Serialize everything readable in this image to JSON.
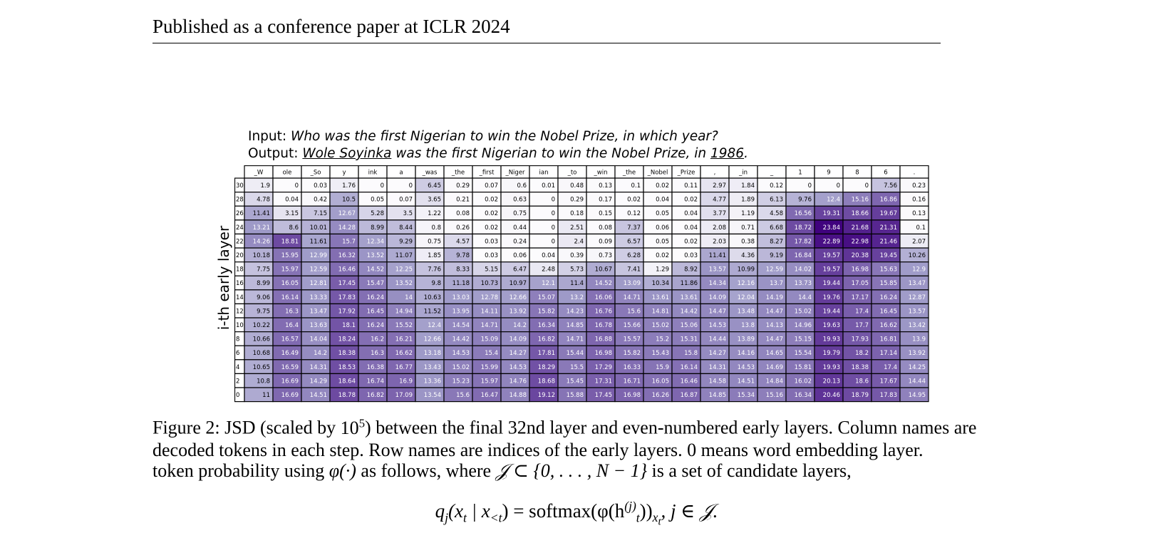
{
  "header": {
    "text": "Published as a conference paper at ICLR 2024"
  },
  "input_line": {
    "label": "Input:",
    "text": "Who was the first Nigerian to win the Nobel Prize, in which year?"
  },
  "output_line": {
    "label": "Output:",
    "ans1": "Wole Soyinka",
    "mid": "was the first Nigerian to win the Nobel Prize, in",
    "ans2": "1986",
    "end": "."
  },
  "chart_data": {
    "type": "heatmap",
    "ylabel": "i-th early layer",
    "columns": [
      "_W",
      "ole",
      "_So",
      "y",
      "ink",
      "a",
      "_was",
      "_the",
      "_first",
      "_Niger",
      "ian",
      "_to",
      "_win",
      "_the",
      "_Nobel",
      "_Prize",
      ",",
      "_in",
      "_",
      "1",
      "9",
      "8",
      "6",
      "."
    ],
    "rows": [
      "30",
      "28",
      "26",
      "24",
      "22",
      "20",
      "18",
      "16",
      "14",
      "12",
      "10",
      "8",
      "6",
      "4",
      "2",
      "0"
    ],
    "values": [
      [
        1.9,
        0.0,
        0.03,
        1.76,
        0.0,
        0.0,
        6.45,
        0.29,
        0.07,
        0.6,
        0.01,
        0.48,
        0.13,
        0.1,
        0.02,
        0.11,
        2.97,
        1.84,
        0.12,
        0.0,
        0.0,
        0.0,
        7.56,
        0.23
      ],
      [
        4.78,
        0.04,
        0.42,
        10.5,
        0.05,
        0.07,
        3.65,
        0.21,
        0.02,
        0.63,
        0.0,
        0.29,
        0.17,
        0.02,
        0.04,
        0.02,
        4.77,
        1.89,
        6.13,
        9.76,
        12.4,
        15.16,
        16.86,
        0.16
      ],
      [
        11.41,
        3.15,
        7.15,
        12.67,
        5.28,
        3.5,
        1.22,
        0.08,
        0.02,
        0.75,
        0.0,
        0.18,
        0.15,
        0.12,
        0.05,
        0.04,
        3.77,
        1.19,
        4.58,
        16.56,
        19.31,
        18.66,
        19.67,
        0.13
      ],
      [
        13.21,
        8.6,
        10.01,
        14.28,
        8.99,
        8.44,
        0.8,
        0.26,
        0.02,
        0.44,
        0.0,
        2.51,
        0.08,
        7.37,
        0.06,
        0.04,
        2.08,
        0.71,
        6.68,
        18.72,
        23.84,
        21.68,
        21.31,
        0.1
      ],
      [
        14.26,
        18.81,
        11.61,
        15.7,
        12.34,
        9.29,
        0.75,
        4.57,
        0.03,
        0.24,
        0.0,
        2.4,
        0.09,
        6.57,
        0.05,
        0.02,
        2.03,
        0.38,
        8.27,
        17.82,
        22.89,
        22.98,
        21.46,
        2.07
      ],
      [
        10.18,
        15.95,
        12.99,
        16.32,
        13.52,
        11.07,
        1.85,
        9.78,
        0.03,
        0.06,
        0.04,
        0.39,
        0.73,
        6.28,
        0.02,
        0.03,
        11.41,
        4.36,
        9.19,
        16.84,
        19.57,
        20.38,
        19.45,
        10.26
      ],
      [
        7.75,
        15.97,
        12.59,
        16.46,
        14.52,
        12.25,
        7.76,
        8.33,
        5.15,
        6.47,
        2.48,
        5.73,
        10.67,
        7.41,
        1.29,
        8.92,
        13.57,
        10.99,
        12.59,
        14.02,
        19.57,
        16.98,
        15.63,
        12.9
      ],
      [
        8.99,
        16.05,
        12.81,
        17.45,
        15.47,
        13.52,
        9.8,
        11.18,
        10.73,
        10.97,
        12.1,
        11.4,
        14.52,
        13.09,
        10.34,
        11.86,
        14.34,
        12.16,
        13.7,
        13.73,
        19.44,
        17.05,
        15.85,
        13.47
      ],
      [
        9.06,
        16.14,
        13.33,
        17.83,
        16.24,
        14.0,
        10.63,
        13.03,
        12.78,
        12.66,
        15.07,
        13.2,
        16.06,
        14.71,
        13.61,
        13.61,
        14.09,
        12.04,
        14.19,
        14.4,
        19.76,
        17.17,
        16.24,
        12.87
      ],
      [
        9.75,
        16.3,
        13.47,
        17.92,
        16.45,
        14.94,
        11.52,
        13.95,
        14.11,
        13.92,
        15.82,
        14.23,
        16.76,
        15.6,
        14.81,
        14.42,
        14.47,
        13.48,
        14.47,
        15.02,
        19.44,
        17.4,
        16.45,
        13.57
      ],
      [
        10.22,
        16.4,
        13.63,
        18.1,
        16.24,
        15.52,
        12.4,
        14.54,
        14.71,
        14.2,
        16.34,
        14.85,
        16.78,
        15.66,
        15.02,
        15.06,
        14.53,
        13.8,
        14.13,
        14.96,
        19.63,
        17.7,
        16.62,
        13.42
      ],
      [
        10.66,
        16.57,
        14.04,
        18.24,
        16.2,
        16.21,
        12.66,
        14.42,
        15.09,
        14.09,
        16.82,
        14.71,
        16.88,
        15.57,
        15.2,
        15.31,
        14.44,
        13.89,
        14.47,
        15.15,
        19.93,
        17.93,
        16.81,
        13.9
      ],
      [
        10.68,
        16.49,
        14.2,
        18.38,
        16.3,
        16.62,
        13.18,
        14.53,
        15.4,
        14.27,
        17.81,
        15.44,
        16.98,
        15.82,
        15.43,
        15.8,
        14.27,
        14.16,
        14.65,
        15.54,
        19.79,
        18.2,
        17.14,
        13.92
      ],
      [
        10.65,
        16.59,
        14.31,
        18.53,
        16.38,
        16.77,
        13.43,
        15.02,
        15.99,
        14.53,
        18.29,
        15.5,
        17.29,
        16.33,
        15.9,
        16.14,
        14.31,
        14.53,
        14.69,
        15.81,
        19.93,
        18.38,
        17.4,
        14.25
      ],
      [
        10.8,
        16.69,
        14.29,
        18.64,
        16.74,
        16.9,
        13.36,
        15.23,
        15.97,
        14.76,
        18.68,
        15.45,
        17.31,
        16.71,
        16.05,
        16.46,
        14.58,
        14.51,
        14.84,
        16.02,
        20.13,
        18.6,
        17.67,
        14.44
      ],
      [
        11.0,
        16.69,
        14.51,
        18.78,
        16.82,
        17.09,
        13.54,
        15.6,
        16.47,
        14.88,
        19.12,
        15.88,
        17.45,
        16.98,
        16.26,
        16.87,
        14.85,
        15.34,
        15.16,
        16.34,
        20.46,
        18.79,
        17.83,
        14.95
      ]
    ],
    "colormap": {
      "low": "#fcfbfd",
      "mid": "#9e9ac8",
      "high": "#3f007d"
    },
    "vrange": [
      0,
      24
    ]
  },
  "caption": {
    "label": "Figure 2:",
    "t1": "JSD (scaled by",
    "pow_base": "10",
    "pow_exp": "5",
    "t2": ") between the final 32nd layer and even-numbered early layers. Column names are decoded tokens in each step. Row names are indices of the early layers. 0 means word embedding layer."
  },
  "body_text": {
    "t1": "token probability using",
    "phi": "φ(·)",
    "t2": "as follows, where",
    "setdef": "𝒥 ⊂ {0, . . . , N − 1}",
    "t3": "is a set of candidate layers,"
  },
  "equation": {
    "lhs": "q",
    "lhs_sub": "j",
    "args": "(x",
    "args_sub1": "t",
    "bar": " | x",
    "args_sub2": "<t",
    "eq": ") = softmax(φ(h",
    "h_sup": "(j)",
    "h_sub": "t",
    "close": "))",
    "close_sub": "x",
    "close_sub_sub": "t",
    "tail": ",    j ∈ 𝒥."
  }
}
